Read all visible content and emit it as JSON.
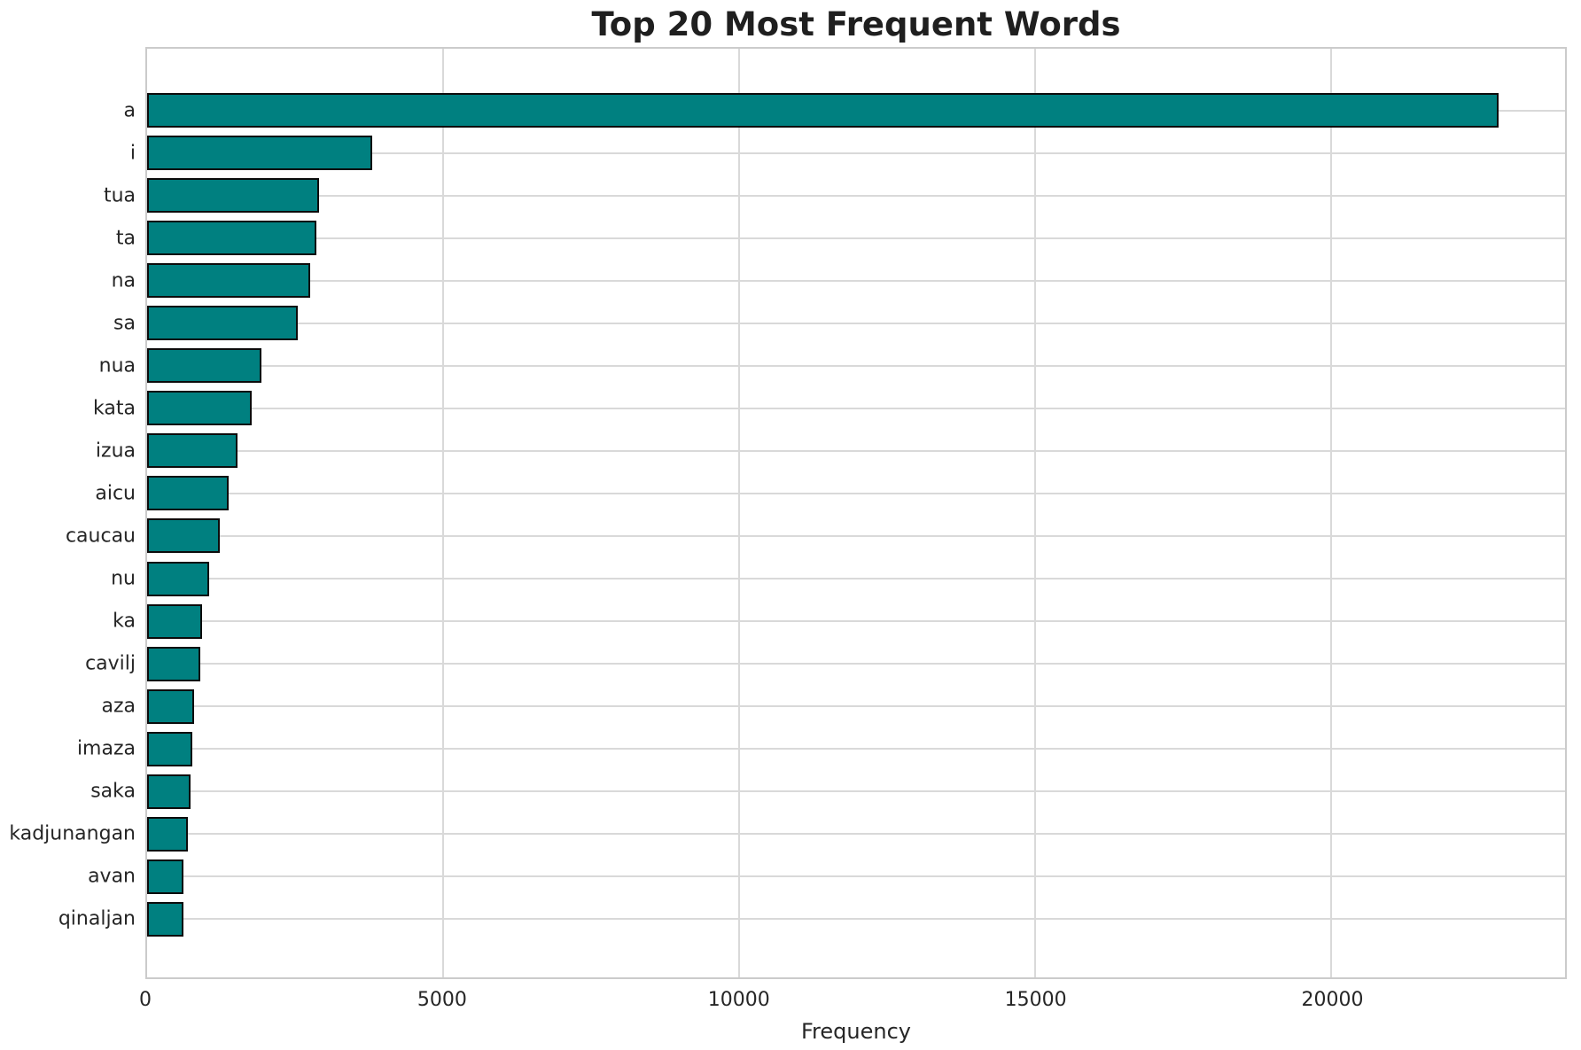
{
  "chart_data": {
    "type": "bar",
    "orientation": "horizontal",
    "title": "Top 20 Most Frequent Words",
    "xlabel": "Frequency",
    "ylabel": "",
    "categories": [
      "a",
      "i",
      "tua",
      "ta",
      "na",
      "sa",
      "nua",
      "kata",
      "izua",
      "aicu",
      "caucau",
      "nu",
      "ka",
      "cavilj",
      "aza",
      "imaza",
      "saka",
      "kadjunangan",
      "avan",
      "qinaljan"
    ],
    "values": [
      22830,
      3800,
      2900,
      2860,
      2750,
      2550,
      1930,
      1770,
      1530,
      1370,
      1230,
      1050,
      930,
      900,
      790,
      760,
      730,
      690,
      620,
      620
    ],
    "xlim": [
      0,
      23950
    ],
    "xticks": [
      0,
      5000,
      10000,
      15000,
      20000
    ],
    "xtick_labels": [
      "0",
      "5000",
      "10000",
      "15000",
      "20000"
    ],
    "grid": "both",
    "legend": "none",
    "bar_color": "#008080",
    "bar_edge_color": "#0c0c0c",
    "grid_color": "#d9d9d9",
    "text_color": "#262626"
  }
}
